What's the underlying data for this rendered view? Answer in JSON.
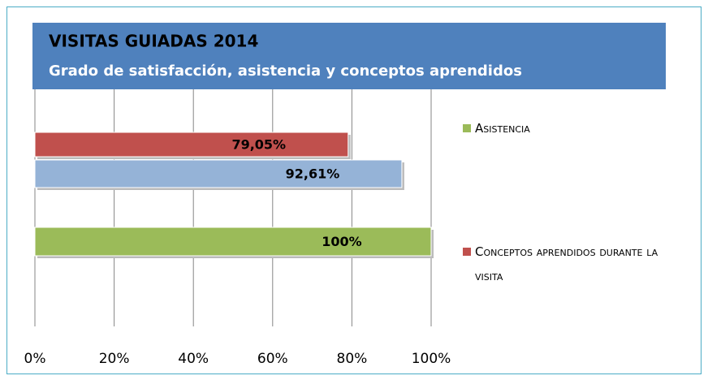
{
  "chart_data": {
    "type": "hbar",
    "title": "VISITAS GUIADAS 2014",
    "subtitle": "Grado de satisfacción, asistencia y conceptos aprendidos",
    "series": [
      {
        "name": "Conceptos aprendidos durante la visita",
        "color": "#c0504d",
        "values": [
          79.05
        ],
        "value_labels": [
          "79,05%"
        ]
      },
      {
        "color": "#95b3d7",
        "values": [
          92.61
        ],
        "value_labels": [
          "92,61%"
        ]
      },
      {
        "name": "Asistencia",
        "color": "#9bbb59",
        "values": [
          100
        ],
        "value_labels": [
          "100%"
        ]
      }
    ],
    "xlim": [
      0,
      100
    ],
    "xticks": [
      {
        "value": 0,
        "label": "0%"
      },
      {
        "value": 20,
        "label": "20%"
      },
      {
        "value": 40,
        "label": "40%"
      },
      {
        "value": 60,
        "label": "60%"
      },
      {
        "value": 80,
        "label": "80%"
      },
      {
        "value": 100,
        "label": "100%"
      }
    ],
    "grid": true,
    "legend": "right"
  }
}
